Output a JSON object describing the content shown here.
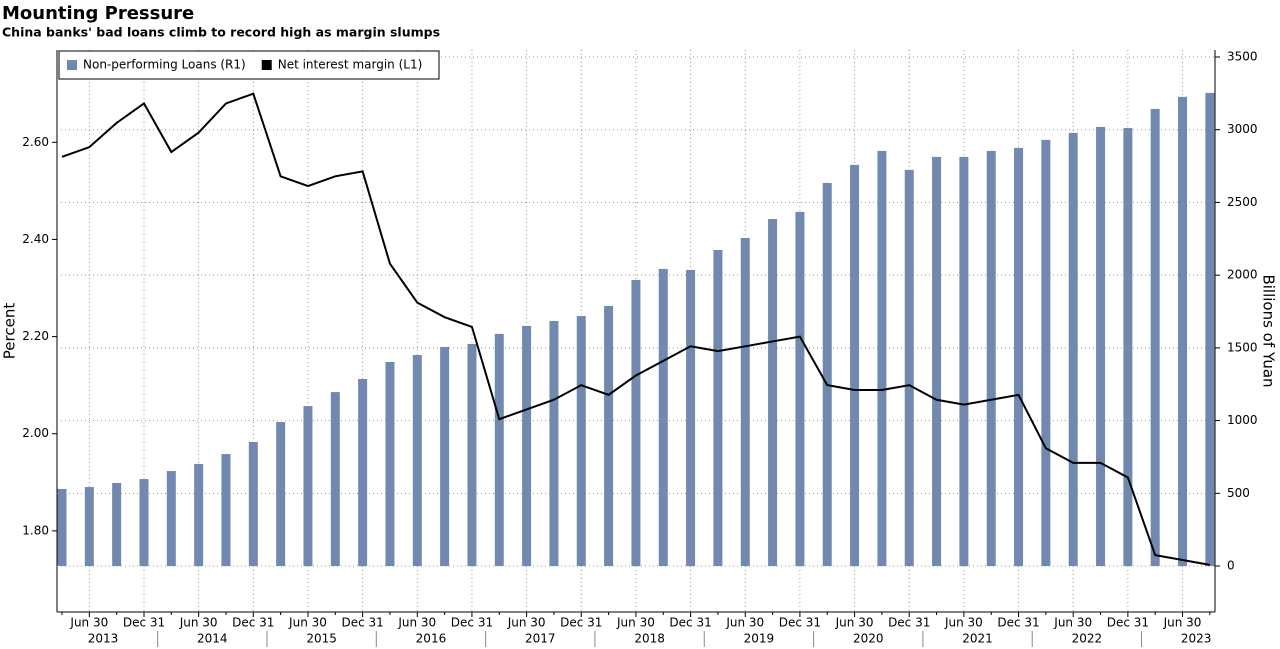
{
  "chart_data": {
    "type": "bar",
    "title": "Mounting Pressure",
    "subtitle": "China banks' bad loans climb to record high as margin slumps",
    "ylabel": "Percent",
    "y2label": "Billions of Yuan",
    "categories": [
      null,
      "Jun 30",
      null,
      "Dec 31",
      null,
      "Jun 30",
      null,
      "Dec 31",
      null,
      "Jun 30",
      null,
      "Dec 31",
      null,
      "Jun 30",
      null,
      "Dec 31",
      null,
      "Jun 30",
      null,
      "Dec 31",
      null,
      "Jun 30",
      null,
      "Dec 31",
      null,
      "Jun 30",
      null,
      "Dec 31",
      null,
      "Jun 30",
      null,
      "Dec 31",
      null,
      "Jun 30",
      null,
      "Dec 31",
      null,
      "Jun 30",
      null,
      "Dec 31",
      null,
      "Jun 30",
      null
    ],
    "years": [
      "2013",
      "2014",
      "2015",
      "2016",
      "2017",
      "2018",
      "2019",
      "2020",
      "2021",
      "2022",
      "2023"
    ],
    "series": [
      {
        "name": "Non-performing Loans (R1)",
        "type": "bar",
        "axis": "y2",
        "color": "#7189ae",
        "values": [
          530,
          543,
          571,
          598,
          653,
          702,
          770,
          853,
          990,
          1100,
          1196,
          1286,
          1403,
          1451,
          1506,
          1527,
          1596,
          1651,
          1685,
          1719,
          1788,
          1967,
          2043,
          2036,
          2173,
          2256,
          2386,
          2435,
          2634,
          2758,
          2854,
          2724,
          2813,
          2813,
          2854,
          2875,
          2930,
          2978,
          3019,
          3012,
          3143,
          3226,
          3253
        ]
      },
      {
        "name": "Net interest margin (L1)",
        "type": "line",
        "color": "#000000",
        "values": [
          2.57,
          2.59,
          2.64,
          2.68,
          2.58,
          2.62,
          2.68,
          2.7,
          2.53,
          2.51,
          2.53,
          2.54,
          2.35,
          2.27,
          2.24,
          2.22,
          2.03,
          2.05,
          2.07,
          2.1,
          2.08,
          2.12,
          2.15,
          2.18,
          2.17,
          2.18,
          2.19,
          2.2,
          2.1,
          2.09,
          2.09,
          2.1,
          2.07,
          2.06,
          2.07,
          2.08,
          1.97,
          1.94,
          1.94,
          1.91,
          1.75,
          1.74,
          1.73
        ]
      }
    ],
    "ylim": [
      1.633,
      2.79
    ],
    "yticks": [
      {
        "value": 1.8,
        "label": "1.80"
      },
      {
        "value": 2.0,
        "label": "2.00"
      },
      {
        "value": 2.2,
        "label": "2.20"
      },
      {
        "value": 2.4,
        "label": "2.40"
      },
      {
        "value": 2.6,
        "label": "2.60"
      }
    ],
    "y2lim": [
      -316,
      3548
    ],
    "y2ticks": [
      0,
      500,
      1000,
      1500,
      2000,
      2500,
      3000,
      3500
    ],
    "grid": true,
    "legend": "top-left"
  }
}
